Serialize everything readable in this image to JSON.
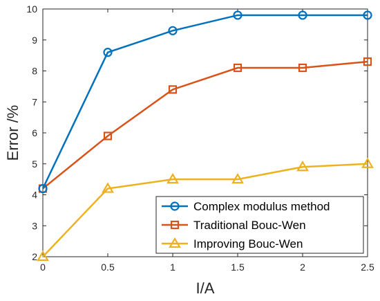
{
  "chart_data": {
    "type": "line",
    "xlabel": "I/A",
    "ylabel": "Error /%",
    "xlim": [
      0,
      2.5
    ],
    "ylim": [
      2,
      10
    ],
    "xticks": [
      "0",
      "0.5",
      "1",
      "1.5",
      "2",
      "2.5"
    ],
    "yticks": [
      "2",
      "3",
      "4",
      "5",
      "6",
      "7",
      "8",
      "9",
      "10"
    ],
    "x": [
      0,
      0.5,
      1,
      1.5,
      2,
      2.5
    ],
    "grid": false,
    "legend_position": "bottom-right",
    "series": [
      {
        "name": "Complex modulus method",
        "values": [
          4.2,
          8.6,
          9.3,
          9.8,
          9.8,
          9.8
        ],
        "color": "#0072BD",
        "marker": "circle"
      },
      {
        "name": "Traditional Bouc-Wen",
        "values": [
          4.2,
          5.9,
          7.4,
          8.1,
          8.1,
          8.3
        ],
        "color": "#D95319",
        "marker": "square"
      },
      {
        "name": "Improving Bouc-Wen",
        "values": [
          2.0,
          4.2,
          4.5,
          4.5,
          4.9,
          5.0
        ],
        "color": "#EDB120",
        "marker": "triangle"
      }
    ]
  }
}
